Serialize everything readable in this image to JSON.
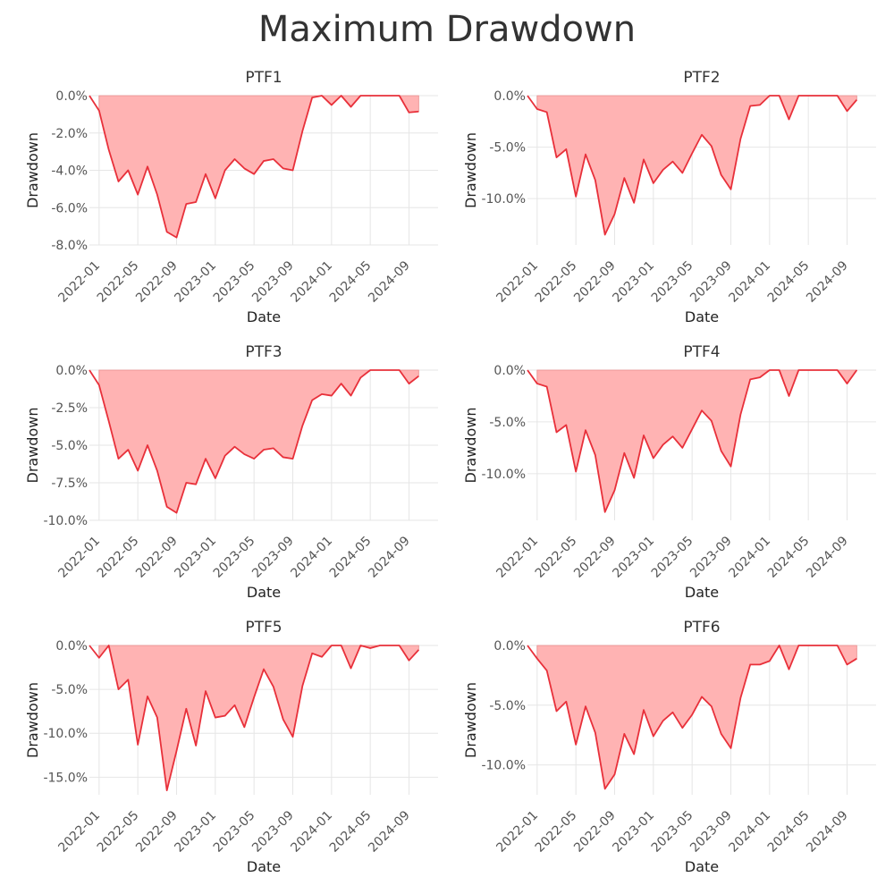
{
  "title": "Maximum Drawdown",
  "colors": {
    "line": "#e8303a",
    "fill": "#ffb3b3",
    "grid": "#e6e6e6",
    "text": "#333333",
    "tick": "#555555"
  },
  "chart_data": [
    {
      "type": "area",
      "title": "PTF1",
      "xlabel": "Date",
      "ylabel": "Drawdown",
      "ylim": [
        -8.0,
        0.0
      ],
      "yticks": [
        0,
        -2,
        -4,
        -6,
        -8
      ],
      "ytick_labels": [
        "0.0%",
        "-2.0%",
        "-4.0%",
        "-6.0%",
        "-8.0%"
      ],
      "xlim": [
        "2021-12",
        "2024-12"
      ],
      "xtick_labels": [
        "2022-01",
        "2022-05",
        "2022-09",
        "2023-01",
        "2023-05",
        "2023-09",
        "2024-01",
        "2024-05",
        "2024-09"
      ],
      "grid": true,
      "x": [
        "2021-12",
        "2022-01",
        "2022-02",
        "2022-03",
        "2022-04",
        "2022-05",
        "2022-06",
        "2022-07",
        "2022-08",
        "2022-09",
        "2022-10",
        "2022-11",
        "2022-12",
        "2023-01",
        "2023-02",
        "2023-03",
        "2023-04",
        "2023-05",
        "2023-06",
        "2023-07",
        "2023-08",
        "2023-09",
        "2023-10",
        "2023-11",
        "2023-12",
        "2024-01",
        "2024-02",
        "2024-03",
        "2024-04",
        "2024-05",
        "2024-06",
        "2024-07",
        "2024-08",
        "2024-09",
        "2024-10"
      ],
      "values": [
        0.0,
        -0.8,
        -2.9,
        -4.6,
        -4.0,
        -5.3,
        -3.8,
        -5.3,
        -7.3,
        -7.6,
        -5.8,
        -5.7,
        -4.2,
        -5.5,
        -4.0,
        -3.4,
        -3.9,
        -4.2,
        -3.5,
        -3.4,
        -3.9,
        -4.0,
        -1.9,
        -0.1,
        0.0,
        -0.5,
        0.0,
        -0.6,
        0.0,
        0.0,
        0.0,
        0.0,
        0.0,
        -0.9,
        -0.85
      ]
    },
    {
      "type": "area",
      "title": "PTF2",
      "xlabel": "Date",
      "ylabel": "Drawdown",
      "ylim": [
        -14.5,
        0.0
      ],
      "yticks": [
        0,
        -5,
        -10
      ],
      "ytick_labels": [
        "0.0%",
        "-5.0%",
        "-10.0%"
      ],
      "xlim": [
        "2021-12",
        "2024-12"
      ],
      "xtick_labels": [
        "2022-01",
        "2022-05",
        "2022-09",
        "2023-01",
        "2023-05",
        "2023-09",
        "2024-01",
        "2024-05",
        "2024-09"
      ],
      "grid": true,
      "x": [
        "2021-12",
        "2022-01",
        "2022-02",
        "2022-03",
        "2022-04",
        "2022-05",
        "2022-06",
        "2022-07",
        "2022-08",
        "2022-09",
        "2022-10",
        "2022-11",
        "2022-12",
        "2023-01",
        "2023-02",
        "2023-03",
        "2023-04",
        "2023-05",
        "2023-06",
        "2023-07",
        "2023-08",
        "2023-09",
        "2023-10",
        "2023-11",
        "2023-12",
        "2024-01",
        "2024-02",
        "2024-03",
        "2024-04",
        "2024-05",
        "2024-06",
        "2024-07",
        "2024-08",
        "2024-09",
        "2024-10"
      ],
      "values": [
        0.0,
        -1.3,
        -1.6,
        -6.0,
        -5.2,
        -9.8,
        -5.7,
        -8.2,
        -13.5,
        -11.5,
        -8.0,
        -10.4,
        -6.2,
        -8.5,
        -7.2,
        -6.4,
        -7.5,
        -5.6,
        -3.8,
        -4.9,
        -7.7,
        -9.1,
        -4.2,
        -1.0,
        -0.9,
        0.0,
        0.0,
        -2.3,
        0.0,
        0.0,
        0.0,
        0.0,
        0.0,
        -1.5,
        -0.4
      ]
    },
    {
      "type": "area",
      "title": "PTF3",
      "xlabel": "Date",
      "ylabel": "Drawdown",
      "ylim": [
        -10.0,
        0.0
      ],
      "yticks": [
        0,
        -2.5,
        -5,
        -7.5,
        -10
      ],
      "ytick_labels": [
        "0.0%",
        "-2.5%",
        "-5.0%",
        "-7.5%",
        "-10.0%"
      ],
      "xlim": [
        "2021-12",
        "2024-12"
      ],
      "xtick_labels": [
        "2022-01",
        "2022-05",
        "2022-09",
        "2023-01",
        "2023-05",
        "2023-09",
        "2024-01",
        "2024-05",
        "2024-09"
      ],
      "grid": true,
      "x": [
        "2021-12",
        "2022-01",
        "2022-02",
        "2022-03",
        "2022-04",
        "2022-05",
        "2022-06",
        "2022-07",
        "2022-08",
        "2022-09",
        "2022-10",
        "2022-11",
        "2022-12",
        "2023-01",
        "2023-02",
        "2023-03",
        "2023-04",
        "2023-05",
        "2023-06",
        "2023-07",
        "2023-08",
        "2023-09",
        "2023-10",
        "2023-11",
        "2023-12",
        "2024-01",
        "2024-02",
        "2024-03",
        "2024-04",
        "2024-05",
        "2024-06",
        "2024-07",
        "2024-08",
        "2024-09",
        "2024-10"
      ],
      "values": [
        0.0,
        -1.0,
        -3.4,
        -5.9,
        -5.3,
        -6.7,
        -5.0,
        -6.7,
        -9.1,
        -9.5,
        -7.5,
        -7.6,
        -5.9,
        -7.2,
        -5.7,
        -5.1,
        -5.6,
        -5.9,
        -5.3,
        -5.2,
        -5.8,
        -5.9,
        -3.7,
        -2.0,
        -1.6,
        -1.7,
        -0.9,
        -1.7,
        -0.5,
        0.0,
        0.0,
        0.0,
        0.0,
        -0.9,
        -0.4
      ]
    },
    {
      "type": "area",
      "title": "PTF4",
      "xlabel": "Date",
      "ylabel": "Drawdown",
      "ylim": [
        -14.5,
        0.0
      ],
      "yticks": [
        0,
        -5,
        -10
      ],
      "ytick_labels": [
        "0.0%",
        "-5.0%",
        "-10.0%"
      ],
      "xlim": [
        "2021-12",
        "2024-12"
      ],
      "xtick_labels": [
        "2022-01",
        "2022-05",
        "2022-09",
        "2023-01",
        "2023-05",
        "2023-09",
        "2024-01",
        "2024-05",
        "2024-09"
      ],
      "grid": true,
      "x": [
        "2021-12",
        "2022-01",
        "2022-02",
        "2022-03",
        "2022-04",
        "2022-05",
        "2022-06",
        "2022-07",
        "2022-08",
        "2022-09",
        "2022-10",
        "2022-11",
        "2022-12",
        "2023-01",
        "2023-02",
        "2023-03",
        "2023-04",
        "2023-05",
        "2023-06",
        "2023-07",
        "2023-08",
        "2023-09",
        "2023-10",
        "2023-11",
        "2023-12",
        "2024-01",
        "2024-02",
        "2024-03",
        "2024-04",
        "2024-05",
        "2024-06",
        "2024-07",
        "2024-08",
        "2024-09",
        "2024-10"
      ],
      "values": [
        0.0,
        -1.3,
        -1.6,
        -6.0,
        -5.3,
        -9.8,
        -5.8,
        -8.2,
        -13.7,
        -11.6,
        -8.0,
        -10.4,
        -6.3,
        -8.5,
        -7.2,
        -6.4,
        -7.5,
        -5.7,
        -3.9,
        -4.9,
        -7.8,
        -9.3,
        -4.3,
        -0.9,
        -0.7,
        0.0,
        0.0,
        -2.5,
        0.0,
        0.0,
        0.0,
        0.0,
        0.0,
        -1.3,
        0.0
      ]
    },
    {
      "type": "area",
      "title": "PTF5",
      "xlabel": "Date",
      "ylabel": "Drawdown",
      "ylim": [
        -17.0,
        0.0
      ],
      "yticks": [
        0,
        -5,
        -10,
        -15
      ],
      "ytick_labels": [
        "0.0%",
        "-5.0%",
        "-10.0%",
        "-15.0%"
      ],
      "xlim": [
        "2021-12",
        "2024-12"
      ],
      "xtick_labels": [
        "2022-01",
        "2022-05",
        "2022-09",
        "2023-01",
        "2023-05",
        "2023-09",
        "2024-01",
        "2024-05",
        "2024-09"
      ],
      "grid": true,
      "x": [
        "2021-12",
        "2022-01",
        "2022-02",
        "2022-03",
        "2022-04",
        "2022-05",
        "2022-06",
        "2022-07",
        "2022-08",
        "2022-09",
        "2022-10",
        "2022-11",
        "2022-12",
        "2023-01",
        "2023-02",
        "2023-03",
        "2023-04",
        "2023-05",
        "2023-06",
        "2023-07",
        "2023-08",
        "2023-09",
        "2023-10",
        "2023-11",
        "2023-12",
        "2024-01",
        "2024-02",
        "2024-03",
        "2024-04",
        "2024-05",
        "2024-06",
        "2024-07",
        "2024-08",
        "2024-09",
        "2024-10"
      ],
      "values": [
        0.0,
        -1.4,
        0.0,
        -5.0,
        -3.9,
        -11.3,
        -5.8,
        -8.2,
        -16.5,
        -12.0,
        -7.2,
        -11.4,
        -5.2,
        -8.2,
        -8.0,
        -6.8,
        -9.3,
        -5.9,
        -2.7,
        -4.7,
        -8.4,
        -10.4,
        -4.6,
        -0.9,
        -1.3,
        0.0,
        0.0,
        -2.6,
        0.0,
        -0.3,
        0.0,
        0.0,
        0.0,
        -1.7,
        -0.5
      ]
    },
    {
      "type": "area",
      "title": "PTF6",
      "xlabel": "Date",
      "ylabel": "Drawdown",
      "ylim": [
        -12.5,
        0.0
      ],
      "yticks": [
        0,
        -5,
        -10
      ],
      "ytick_labels": [
        "0.0%",
        "-5.0%",
        "-10.0%"
      ],
      "xlim": [
        "2021-12",
        "2024-12"
      ],
      "xtick_labels": [
        "2022-01",
        "2022-05",
        "2022-09",
        "2023-01",
        "2023-05",
        "2023-09",
        "2024-01",
        "2024-05",
        "2024-09"
      ],
      "grid": true,
      "x": [
        "2021-12",
        "2022-01",
        "2022-02",
        "2022-03",
        "2022-04",
        "2022-05",
        "2022-06",
        "2022-07",
        "2022-08",
        "2022-09",
        "2022-10",
        "2022-11",
        "2022-12",
        "2023-01",
        "2023-02",
        "2023-03",
        "2023-04",
        "2023-05",
        "2023-06",
        "2023-07",
        "2023-08",
        "2023-09",
        "2023-10",
        "2023-11",
        "2023-12",
        "2024-01",
        "2024-02",
        "2024-03",
        "2024-04",
        "2024-05",
        "2024-06",
        "2024-07",
        "2024-08",
        "2024-09",
        "2024-10"
      ],
      "values": [
        0.0,
        -1.1,
        -2.1,
        -5.5,
        -4.7,
        -8.3,
        -5.1,
        -7.3,
        -12.0,
        -10.8,
        -7.4,
        -9.1,
        -5.4,
        -7.6,
        -6.3,
        -5.6,
        -6.9,
        -5.8,
        -4.3,
        -5.1,
        -7.4,
        -8.6,
        -4.4,
        -1.6,
        -1.6,
        -1.3,
        0.0,
        -2.0,
        0.0,
        0.0,
        0.0,
        0.0,
        0.0,
        -1.6,
        -1.1
      ]
    }
  ]
}
